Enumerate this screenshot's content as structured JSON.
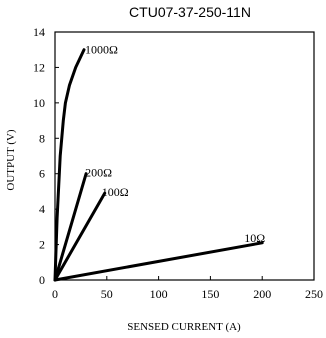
{
  "chart_data": {
    "type": "line",
    "title": "CTU07-37-250-11N",
    "xlabel": "SENSED CURRENT (A)",
    "ylabel": "OUTPUT (V)",
    "xlim": [
      0,
      250
    ],
    "ylim": [
      0,
      14
    ],
    "xticks": [
      0,
      50,
      100,
      150,
      200,
      250
    ],
    "yticks": [
      0,
      2,
      4,
      6,
      8,
      10,
      12,
      14
    ],
    "grid": false,
    "series": [
      {
        "name": "1000Ω",
        "x": [
          0,
          2,
          5,
          8,
          10,
          14,
          20,
          28
        ],
        "y": [
          0,
          3.5,
          7,
          9,
          10,
          11,
          12,
          13
        ]
      },
      {
        "name": "200Ω",
        "x": [
          0,
          30
        ],
        "y": [
          0,
          6
        ]
      },
      {
        "name": "100Ω",
        "x": [
          0,
          48
        ],
        "y": [
          0,
          4.9
        ]
      },
      {
        "name": "10Ω",
        "x": [
          0,
          200
        ],
        "y": [
          0,
          2.1
        ]
      }
    ]
  }
}
